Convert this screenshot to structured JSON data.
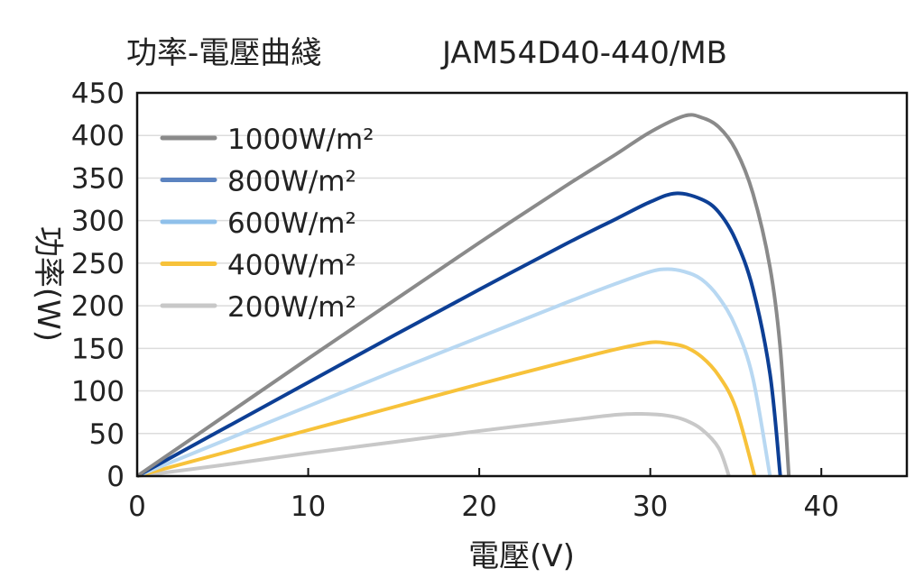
{
  "chart_data": {
    "type": "line",
    "title": "功率-電壓曲綫",
    "subtitle": "JAM54D40-440/MB",
    "xlabel": "電壓(V)",
    "ylabel": "功率(W)",
    "xlim": [
      0,
      45
    ],
    "ylim": [
      0,
      450
    ],
    "xticks": [
      0,
      10,
      20,
      30,
      40
    ],
    "yticks": [
      0,
      50,
      100,
      150,
      200,
      250,
      300,
      350,
      400,
      450
    ],
    "grid": "horizontal",
    "legend_position": "top-left",
    "series": [
      {
        "name": "1000W/m²",
        "color": "#8a8a8a",
        "x": [
          0,
          5,
          10,
          15,
          20,
          25,
          28,
          30,
          32,
          33,
          34,
          35,
          36,
          37,
          37.6,
          38.1
        ],
        "y": [
          0,
          69,
          138,
          206,
          274,
          340,
          378,
          404,
          423,
          421,
          410,
          383,
          332,
          245,
          150,
          0
        ]
      },
      {
        "name": "800W/m²",
        "color": "#0d3f95",
        "legend_color": "#5b83c0",
        "x": [
          0,
          5,
          10,
          15,
          20,
          25,
          28,
          30,
          31.5,
          33,
          34,
          35,
          36,
          37,
          37.6
        ],
        "y": [
          0,
          55,
          110,
          165,
          219,
          272,
          302,
          322,
          332,
          325,
          310,
          277,
          220,
          120,
          0
        ]
      },
      {
        "name": "600W/m²",
        "color": "#b8d8f2",
        "legend_color": "#8fc0ea",
        "x": [
          0,
          5,
          10,
          15,
          20,
          25,
          28,
          30,
          31,
          32,
          33,
          34,
          35,
          36,
          37
        ],
        "y": [
          0,
          41,
          82,
          123,
          163,
          203,
          226,
          240,
          243,
          240,
          231,
          210,
          175,
          115,
          0
        ]
      },
      {
        "name": "400W/m²",
        "color": "#f7c23a",
        "x": [
          0,
          5,
          10,
          15,
          20,
          25,
          28,
          30,
          31,
          32,
          33,
          34,
          35,
          36.1
        ],
        "y": [
          0,
          27,
          54,
          81,
          108,
          134,
          149,
          157,
          156,
          152,
          140,
          118,
          80,
          0
        ]
      },
      {
        "name": "200W/m²",
        "color": "#c8c8c8",
        "x": [
          0,
          5,
          10,
          15,
          20,
          25,
          28,
          29.5,
          31,
          32,
          33,
          34,
          34.6
        ],
        "y": [
          0,
          13,
          27,
          40,
          53,
          65,
          72,
          73,
          71,
          66,
          55,
          33,
          0
        ]
      }
    ]
  }
}
